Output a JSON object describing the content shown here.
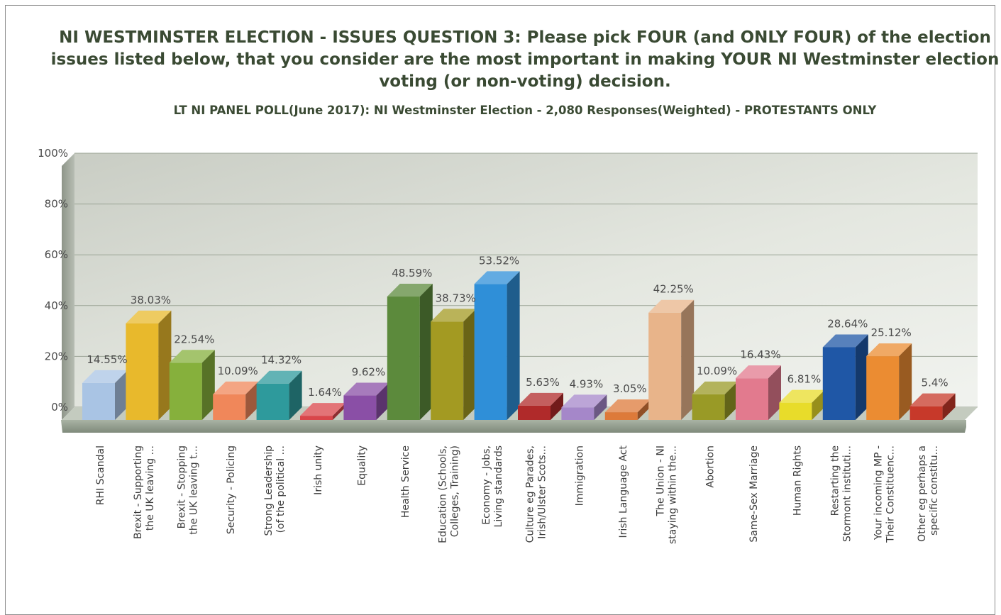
{
  "chart_data": {
    "type": "bar",
    "title": "NI WESTMINSTER ELECTION - ISSUES  QUESTION 3: Please pick FOUR (and ONLY FOUR) of the election issues listed below, that you consider are the most important in making YOUR NI Westminster election voting (or non-voting) decision.",
    "subtitle": "LT NI PANEL POLL(June 2017): NI Westminster Election - 2,080 Responses(Weighted) - PROTESTANTS ONLY",
    "ylim": [
      0,
      100
    ],
    "yticks": [
      "0%",
      "20%",
      "40%",
      "60%",
      "80%",
      "100%"
    ],
    "grid": true,
    "legend": "none",
    "categories": [
      [
        "RHI Scandal"
      ],
      [
        "Brexit - Supporting",
        "the UK leaving ..."
      ],
      [
        "Brexit - Stopping",
        "the UK leaving t..."
      ],
      [
        "Security - Policing"
      ],
      [
        "Strong Leadership",
        "(of the political ..."
      ],
      [
        "Irish unity"
      ],
      [
        "Equality"
      ],
      [
        "Health Service"
      ],
      [
        "Education (Schools,",
        "Colleges, Training)"
      ],
      [
        "Economy - Jobs,",
        "Living standards"
      ],
      [
        "Culture eg Parades,",
        "Irish/Ulster Scots..."
      ],
      [
        "Immigration"
      ],
      [
        "Irish Language Act"
      ],
      [
        "The Union - NI",
        "staying within the..."
      ],
      [
        "Abortion"
      ],
      [
        "Same-Sex Marriage"
      ],
      [
        "Human Rights"
      ],
      [
        "Restarting the",
        "Stormont instituti..."
      ],
      [
        "Your incoming MP -",
        "Their Constituenc..."
      ],
      [
        "Other eg perhaps a",
        "specific constitu..."
      ]
    ],
    "values": [
      14.55,
      38.03,
      22.54,
      10.09,
      14.32,
      1.64,
      9.62,
      48.59,
      38.73,
      53.52,
      5.63,
      4.93,
      3.05,
      42.25,
      10.09,
      16.43,
      6.81,
      28.64,
      25.12,
      5.4
    ],
    "value_labels": [
      "14.55%",
      "38.03%",
      "22.54%",
      "10.09%",
      "14.32%",
      "1.64%",
      "9.62%",
      "48.59%",
      "38.73%",
      "53.52%",
      "5.63%",
      "4.93%",
      "3.05%",
      "42.25%",
      "10.09%",
      "16.43%",
      "6.81%",
      "28.64%",
      "25.12%",
      "5.4%"
    ],
    "colors": [
      "#a9c4e4",
      "#e8b92c",
      "#86b03c",
      "#f0875a",
      "#2e9a9c",
      "#d9464a",
      "#8a4fa6",
      "#5c8a3c",
      "#a39a22",
      "#2f8fd8",
      "#b02a2a",
      "#a587c9",
      "#dd7a3a",
      "#e8b48a",
      "#999a26",
      "#e27a8e",
      "#e8dc2a",
      "#1f57a6",
      "#eb8c32",
      "#c7392a"
    ]
  }
}
